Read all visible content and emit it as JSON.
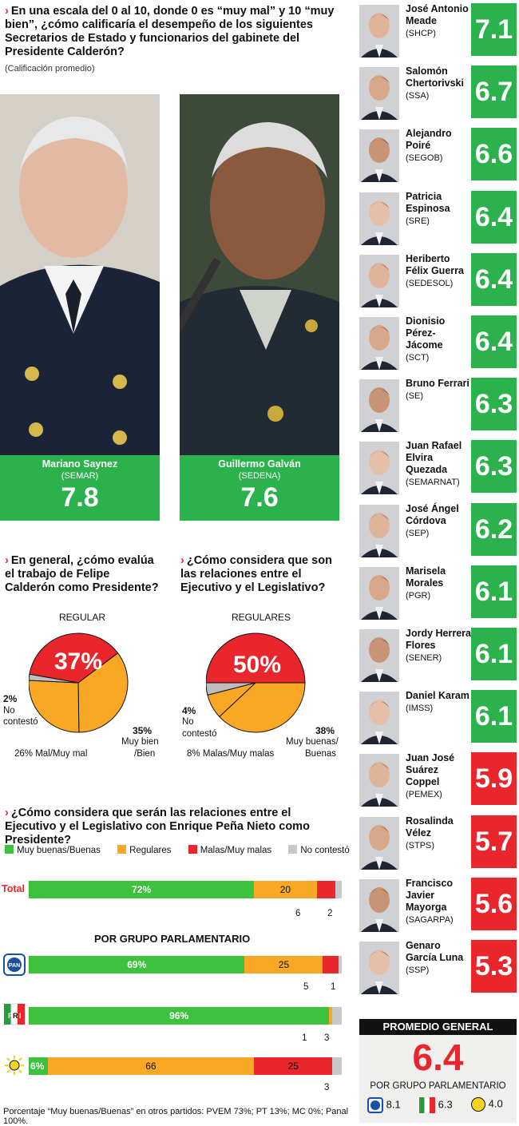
{
  "question1": {
    "text": "En una escala del 0 al 10, donde 0 es “muy mal” y 10 “muy bien”, ¿cómo calificaría el desempeño de los siguientes Secretarios de Estado y funcionarios del gabinete del Presidente Calderón?",
    "note": "(Calificación promedio)"
  },
  "featured": [
    {
      "name": "Mariano Saynez",
      "agency": "(SEMAR)",
      "score": "7.8"
    },
    {
      "name": "Guillermo Galván",
      "agency": "(SEDENA)",
      "score": "7.6"
    }
  ],
  "secretaries": [
    {
      "name": "José Antonio Meade",
      "agency": "(SHCP)",
      "score": "7.1",
      "color": "#2bb24c"
    },
    {
      "name": "Salomón Chertorivski",
      "agency": "(SSA)",
      "score": "6.7",
      "color": "#2bb24c"
    },
    {
      "name": "Alejandro Poiré",
      "agency": "(SEGOB)",
      "score": "6.6",
      "color": "#2bb24c"
    },
    {
      "name": "Patricia Espinosa",
      "agency": "(SRE)",
      "score": "6.4",
      "color": "#2bb24c"
    },
    {
      "name": "Heriberto Félix Guerra",
      "agency": "(SEDESOL)",
      "score": "6.4",
      "color": "#2bb24c"
    },
    {
      "name": "Dionisio Pérez-Jácome",
      "agency": "(SCT)",
      "score": "6.4",
      "color": "#2bb24c"
    },
    {
      "name": "Bruno Ferrari",
      "agency": "(SE)",
      "score": "6.3",
      "color": "#2bb24c"
    },
    {
      "name": "Juan Rafael Elvira Quezada",
      "agency": "(SEMARNAT)",
      "score": "6.3",
      "color": "#2bb24c"
    },
    {
      "name": "José Ángel Córdova",
      "agency": "(SEP)",
      "score": "6.2",
      "color": "#2bb24c"
    },
    {
      "name": "Marisela Morales",
      "agency": "(PGR)",
      "score": "6.1",
      "color": "#2bb24c"
    },
    {
      "name": "Jordy Herrera Flores",
      "agency": "(SENER)",
      "score": "6.1",
      "color": "#2bb24c"
    },
    {
      "name": "Daniel Karam",
      "agency": "(IMSS)",
      "score": "6.1",
      "color": "#2bb24c"
    },
    {
      "name": "Juan José Suárez Coppel",
      "agency": "(PEMEX)",
      "score": "5.9",
      "color": "#e8262b"
    },
    {
      "name": "Rosalinda Vélez",
      "agency": "(STPS)",
      "score": "5.7",
      "color": "#e8262b"
    },
    {
      "name": "Francisco Javier Mayorga",
      "agency": "(SAGARPA)",
      "score": "5.6",
      "color": "#e8262b"
    },
    {
      "name": "Genaro García Luna",
      "agency": "(SSP)",
      "score": "5.3",
      "color": "#e8262b"
    }
  ],
  "question2": {
    "text": "En general, ¿cómo evalúa el trabajo de Felipe Calderón como Presidente?"
  },
  "question3": {
    "text": "¿Cómo considera que son las relaciones entre el Ejecutivo y el Legislativo?"
  },
  "question4": {
    "text": "¿Cómo considera que serán las relaciones entre el Ejecutivo y el Legislativo con Enrique Peña Nieto como Presidente?"
  },
  "pie1_labels": {
    "top": "REGULAR",
    "big": "37%",
    "nc_pct": "2%",
    "nc_txt": "No contestó",
    "good_pct": "35%",
    "good_txt1": "Muy bien",
    "good_txt2": "/Bien",
    "bad": "26% Mal/Muy mal"
  },
  "pie2_labels": {
    "top": "REGULARES",
    "big": "50%",
    "nc_pct": "4%",
    "nc_txt1": "No",
    "nc_txt2": "contestó",
    "good_pct": "38%",
    "good_txt1": "Muy buenas/",
    "good_txt2": "Buenas",
    "bad": "8% Malas/Muy malas"
  },
  "legend": [
    "Muy buenas/Buenas",
    "Regulares",
    "Malas/Muy malas",
    "No contestó"
  ],
  "bars_heading": "POR GRUPO PARLAMENTARIO",
  "total_label": "Total",
  "total_bar_labels": {
    "green": "72%",
    "orange": "20",
    "red": "6",
    "gray": "2"
  },
  "pan_bar_labels": {
    "green": "69%",
    "orange": "25",
    "red": "5",
    "gray": "1"
  },
  "pri_bar_labels": {
    "green": "96%",
    "orange": "1",
    "gray": "3"
  },
  "prd_bar_labels": {
    "green": "6%",
    "orange": "66",
    "red": "25",
    "gray": "3"
  },
  "footnote": "Porcentaje “Muy buenas/Buenas” en otros partidos: PVEM 73%; PT 13%; MC 0%; Panal 100%.",
  "promedio": {
    "title": "PROMEDIO GENERAL",
    "value": "6.4",
    "sub": "POR GRUPO PARLAMENTARIO",
    "pan": "8.1",
    "pri": "6.3",
    "prd": "4.0"
  },
  "chart_data": [
    {
      "type": "pie",
      "title": "En general, ¿cómo evalúa el trabajo de Felipe Calderón como Presidente?",
      "categories": [
        "Regular",
        "Muy bien/Bien",
        "Mal/Muy mal",
        "No contestó"
      ],
      "values": [
        37,
        35,
        26,
        2
      ],
      "colors": [
        "#e8262b",
        "#f9a825",
        "#f9a825",
        "#bdbdbd"
      ]
    },
    {
      "type": "pie",
      "title": "¿Cómo considera que son las relaciones entre el Ejecutivo y el Legislativo?",
      "categories": [
        "Regulares",
        "Muy buenas/Buenas",
        "Malas/Muy malas",
        "No contestó"
      ],
      "values": [
        50,
        38,
        8,
        4
      ],
      "colors": [
        "#e8262b",
        "#f9a825",
        "#f9a825",
        "#bdbdbd"
      ]
    },
    {
      "type": "bar",
      "stacked": true,
      "orientation": "horizontal",
      "categories": [
        "Total",
        "PAN",
        "PRI",
        "PRD"
      ],
      "series": [
        {
          "name": "Muy buenas/Buenas",
          "values": [
            72,
            69,
            96,
            6
          ],
          "color": "#3cc23c"
        },
        {
          "name": "Regulares",
          "values": [
            20,
            25,
            1,
            66
          ],
          "color": "#f9a825"
        },
        {
          "name": "Malas/Muy malas",
          "values": [
            6,
            5,
            0,
            25
          ],
          "color": "#e8262b"
        },
        {
          "name": "No contestó",
          "values": [
            2,
            1,
            3,
            3
          ],
          "color": "#c8c8c8"
        }
      ]
    }
  ]
}
